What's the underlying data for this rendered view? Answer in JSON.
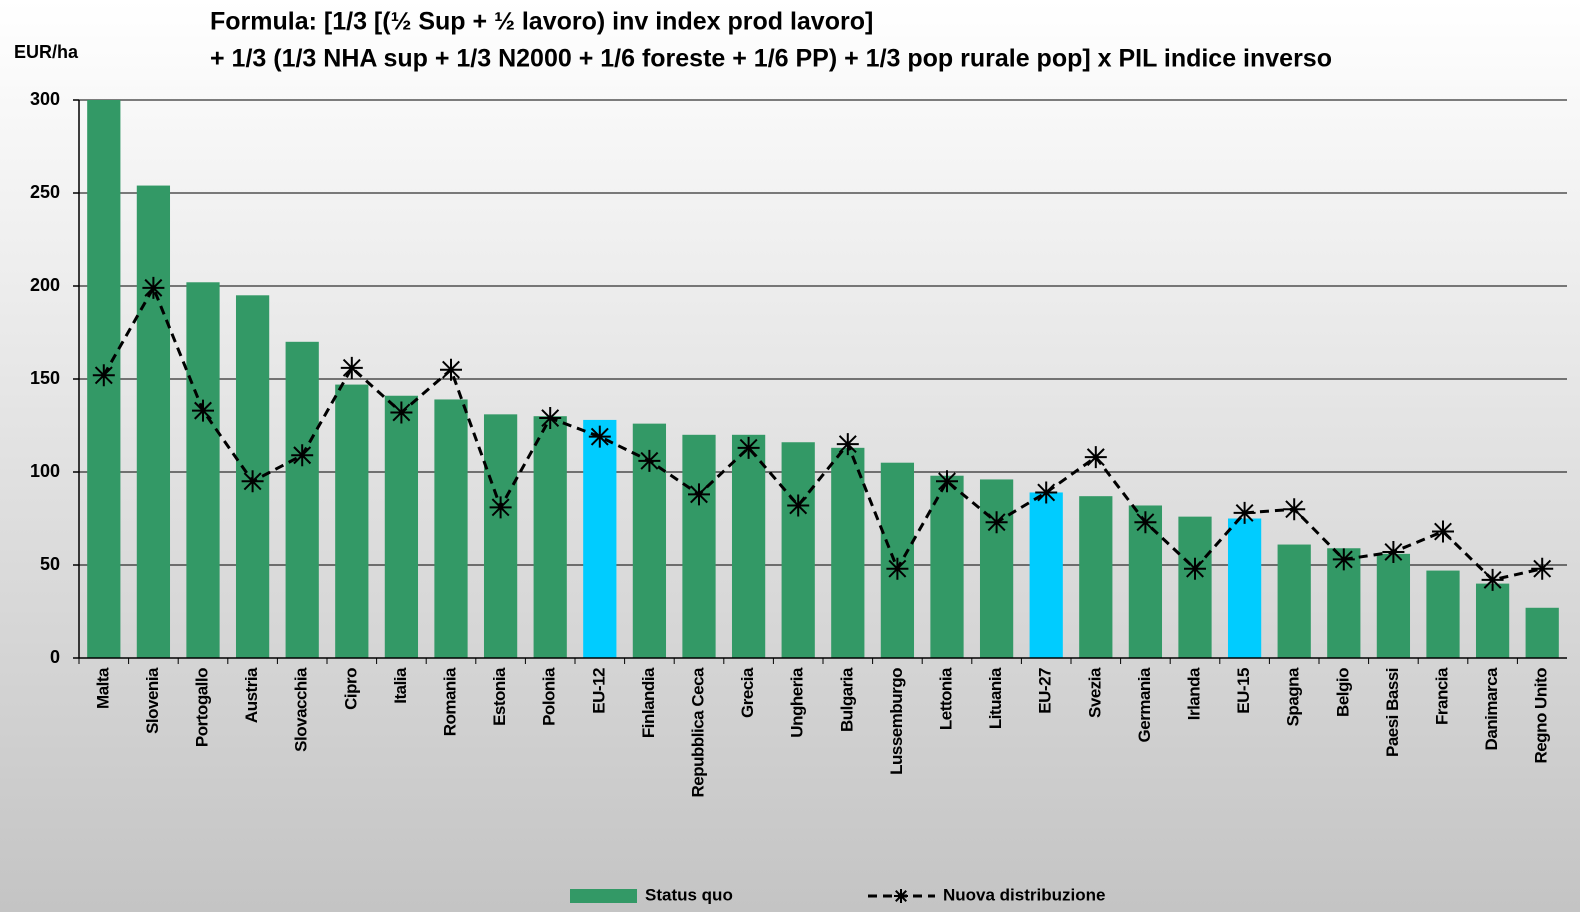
{
  "chart_data": {
    "type": "bar",
    "title": [
      "Formula: [1/3 [(½ Sup + ½ lavoro) inv index prod lavoro]",
      "+ 1/3 (1/3 NHA sup + 1/3 N2000 + 1/6 foreste + 1/6 PP) + 1/3 pop rurale pop] x PIL indice inverso"
    ],
    "y_label": "EUR/ha",
    "categories": [
      "Malta",
      "Slovenia",
      "Portogallo",
      "Austria",
      "Slovacchia",
      "Cipro",
      "Italia",
      "Romania",
      "Estonia",
      "Polonia",
      "EU-12",
      "Finlandia",
      "Repubblica Ceca",
      "Grecia",
      "Ungheria",
      "Bulgaria",
      "Lussemburgo",
      "Lettonia",
      "Lituania",
      "EU-27",
      "Svezia",
      "Germania",
      "Irlanda",
      "EU-15",
      "Spagna",
      "Belgio",
      "Paesi Bassi",
      "Francia",
      "Danimarca",
      "Regno Unito"
    ],
    "series": [
      {
        "name": "Status quo",
        "type": "bar",
        "color": "#339966",
        "colors": [
          "#339966",
          "#339966",
          "#339966",
          "#339966",
          "#339966",
          "#339966",
          "#339966",
          "#339966",
          "#339966",
          "#339966",
          "#00ccff",
          "#339966",
          "#339966",
          "#339966",
          "#339966",
          "#339966",
          "#339966",
          "#339966",
          "#339966",
          "#00ccff",
          "#339966",
          "#339966",
          "#339966",
          "#00ccff",
          "#339966",
          "#339966",
          "#339966",
          "#339966",
          "#339966",
          "#339966"
        ],
        "values": [
          300,
          254,
          202,
          195,
          170,
          147,
          141,
          139,
          131,
          130,
          128,
          126,
          120,
          120,
          116,
          113,
          105,
          98,
          96,
          89,
          87,
          82,
          76,
          75,
          61,
          59,
          56,
          47,
          40,
          27
        ]
      },
      {
        "name": "Nuova distribuzione",
        "type": "line",
        "color": "#000000",
        "dashed": true,
        "marker": "star",
        "values": [
          152,
          199,
          133,
          95,
          109,
          156,
          132,
          155,
          81,
          129,
          119,
          106,
          88,
          113,
          82,
          115,
          48,
          95,
          73,
          89,
          108,
          73,
          48,
          78,
          80,
          53,
          57,
          68,
          42,
          48
        ]
      }
    ],
    "ylim": [
      0,
      300
    ],
    "yticks": [
      0,
      50,
      100,
      150,
      200,
      250,
      300
    ],
    "grid": true,
    "legend": "bottom"
  }
}
